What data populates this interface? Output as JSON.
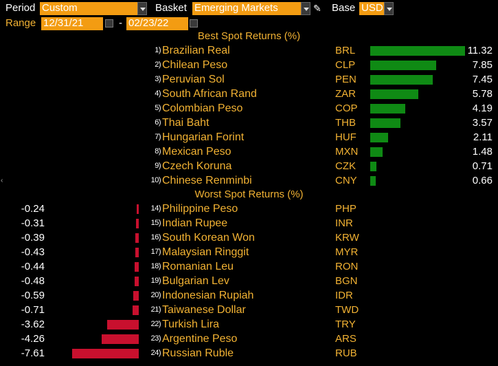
{
  "header": {
    "period_label": "Period",
    "period_value": "Custom",
    "basket_label": "Basket",
    "basket_value": "Emerging Markets",
    "base_label": "Base",
    "base_value": "USD",
    "range_label": "Range",
    "range_start": "12/31/21",
    "range_sep": "-",
    "range_end": "02/23/22"
  },
  "best": {
    "title": "Best Spot Returns (%)",
    "max_value": 11.32,
    "rows": [
      {
        "rank": "1)",
        "name": "Brazilian Real",
        "code": "BRL",
        "value": "11.32",
        "num": 11.32
      },
      {
        "rank": "2)",
        "name": "Chilean Peso",
        "code": "CLP",
        "value": "7.85",
        "num": 7.85
      },
      {
        "rank": "3)",
        "name": "Peruvian Sol",
        "code": "PEN",
        "value": "7.45",
        "num": 7.45
      },
      {
        "rank": "4)",
        "name": "South African Rand",
        "code": "ZAR",
        "value": "5.78",
        "num": 5.78
      },
      {
        "rank": "5)",
        "name": "Colombian Peso",
        "code": "COP",
        "value": "4.19",
        "num": 4.19
      },
      {
        "rank": "6)",
        "name": "Thai Baht",
        "code": "THB",
        "value": "3.57",
        "num": 3.57
      },
      {
        "rank": "7)",
        "name": "Hungarian Forint",
        "code": "HUF",
        "value": "2.11",
        "num": 2.11
      },
      {
        "rank": "8)",
        "name": "Mexican Peso",
        "code": "MXN",
        "value": "1.48",
        "num": 1.48
      },
      {
        "rank": "9)",
        "name": "Czech Koruna",
        "code": "CZK",
        "value": "0.71",
        "num": 0.71
      },
      {
        "rank": "10)",
        "name": "Chinese Renminbi",
        "code": "CNY",
        "value": "0.66",
        "num": 0.66
      }
    ]
  },
  "worst": {
    "title": "Worst Spot Returns (%)",
    "max_abs": 7.61,
    "rows": [
      {
        "rank": "14)",
        "name": "Philippine Peso",
        "code": "PHP",
        "value": "-0.24",
        "num": -0.24
      },
      {
        "rank": "15)",
        "name": "Indian Rupee",
        "code": "INR",
        "value": "-0.31",
        "num": -0.31
      },
      {
        "rank": "16)",
        "name": "South Korean Won",
        "code": "KRW",
        "value": "-0.39",
        "num": -0.39
      },
      {
        "rank": "17)",
        "name": "Malaysian Ringgit",
        "code": "MYR",
        "value": "-0.43",
        "num": -0.43
      },
      {
        "rank": "18)",
        "name": "Romanian Leu",
        "code": "RON",
        "value": "-0.44",
        "num": -0.44
      },
      {
        "rank": "19)",
        "name": "Bulgarian Lev",
        "code": "BGN",
        "value": "-0.48",
        "num": -0.48
      },
      {
        "rank": "20)",
        "name": "Indonesian Rupiah",
        "code": "IDR",
        "value": "-0.59",
        "num": -0.59
      },
      {
        "rank": "21)",
        "name": "Taiwanese Dollar",
        "code": "TWD",
        "value": "-0.71",
        "num": -0.71
      },
      {
        "rank": "22)",
        "name": "Turkish Lira",
        "code": "TRY",
        "value": "-3.62",
        "num": -3.62
      },
      {
        "rank": "23)",
        "name": "Argentine Peso",
        "code": "ARS",
        "value": "-4.26",
        "num": -4.26
      },
      {
        "rank": "24)",
        "name": "Russian Ruble",
        "code": "RUB",
        "value": "-7.61",
        "num": -7.61
      }
    ]
  },
  "colors": {
    "positive_bar": "#0f8a14",
    "negative_bar": "#c8102e",
    "accent": "#f39c12",
    "label": "#f2b233"
  },
  "icons": {
    "edit": "pencil-icon",
    "dropdown": "chevron-down-icon",
    "calendar": "calendar-icon"
  }
}
